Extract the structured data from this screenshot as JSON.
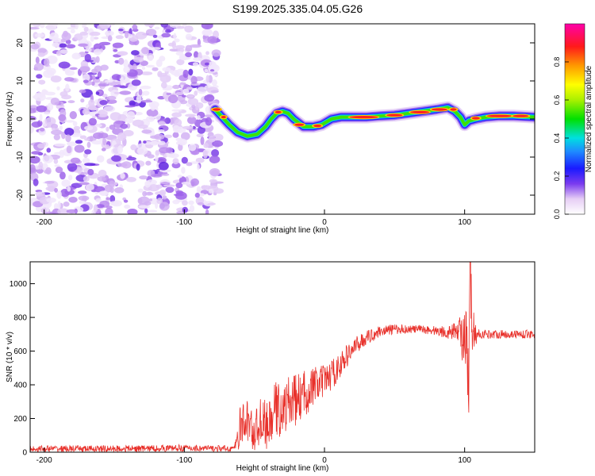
{
  "title": "S199.2025.335.04.05.G26",
  "chart_data": [
    {
      "type": "heatmap",
      "xlabel": "Height of straight line (km)",
      "ylabel": "Frequency (Hz)",
      "xlim": [
        -210,
        150
      ],
      "ylim": [
        -25,
        25
      ],
      "xticks": [
        -200,
        -100,
        0,
        100
      ],
      "yticks": [
        -20,
        -10,
        0,
        10,
        20
      ],
      "colorbar": {
        "label": "Normalized spectral amplitude",
        "ticks": [
          0.0,
          0.2,
          0.4,
          0.6,
          0.8
        ],
        "range": [
          0,
          1
        ]
      },
      "noise_region_x": [
        -210,
        -75
      ],
      "ridge": {
        "x": [
          -78,
          -73,
          -68,
          -62,
          -55,
          -48,
          -42,
          -38,
          -34,
          -30,
          -26,
          -22,
          -15,
          -8,
          -2,
          5,
          12,
          20,
          30,
          40,
          50,
          60,
          70,
          80,
          88,
          93,
          97,
          100,
          103,
          108,
          115,
          125,
          135,
          150
        ],
        "y": [
          2.5,
          0.5,
          -1.5,
          -3.5,
          -4.5,
          -4,
          -2,
          0,
          1.5,
          2,
          1.5,
          0,
          -2,
          -2,
          -1.5,
          0,
          0.5,
          0.5,
          0.5,
          0.8,
          1,
          1.5,
          2,
          2.5,
          3,
          2,
          0.5,
          -1.5,
          -0.5,
          0,
          0.5,
          0.8,
          0.8,
          0.5
        ]
      }
    },
    {
      "type": "line",
      "xlabel": "Height of straight line (km)",
      "ylabel": "SNR (10 * v/v)",
      "xlim": [
        -210,
        150
      ],
      "ylim": [
        0,
        1130
      ],
      "xticks": [
        -200,
        -100,
        0,
        100
      ],
      "yticks": [
        0,
        200,
        400,
        600,
        800,
        1000
      ],
      "series": [
        {
          "name": "SNR",
          "color": "#e8302a",
          "x": [
            -210,
            -150,
            -100,
            -70,
            -64,
            -60,
            -55,
            -50,
            -45,
            -40,
            -35,
            -30,
            -25,
            -20,
            -15,
            -10,
            -5,
            0,
            5,
            10,
            15,
            20,
            25,
            30,
            35,
            40,
            50,
            60,
            70,
            80,
            90,
            95,
            98,
            100,
            102,
            103,
            104,
            105,
            107,
            110,
            120,
            130,
            140,
            150
          ],
          "y": [
            20,
            20,
            25,
            20,
            25,
            150,
            190,
            110,
            200,
            140,
            260,
            240,
            300,
            310,
            340,
            380,
            400,
            420,
            460,
            500,
            560,
            610,
            650,
            680,
            700,
            720,
            730,
            730,
            730,
            720,
            710,
            730,
            700,
            650,
            500,
            350,
            1100,
            800,
            700,
            700,
            700,
            700,
            700,
            700
          ],
          "amp": [
            20,
            20,
            20,
            20,
            20,
            130,
            130,
            120,
            140,
            140,
            170,
            150,
            160,
            150,
            140,
            130,
            110,
            100,
            90,
            80,
            70,
            60,
            50,
            40,
            40,
            30,
            30,
            25,
            25,
            30,
            40,
            60,
            140,
            200,
            320,
            360,
            260,
            200,
            80,
            30,
            25,
            25,
            25,
            25
          ]
        }
      ]
    }
  ]
}
